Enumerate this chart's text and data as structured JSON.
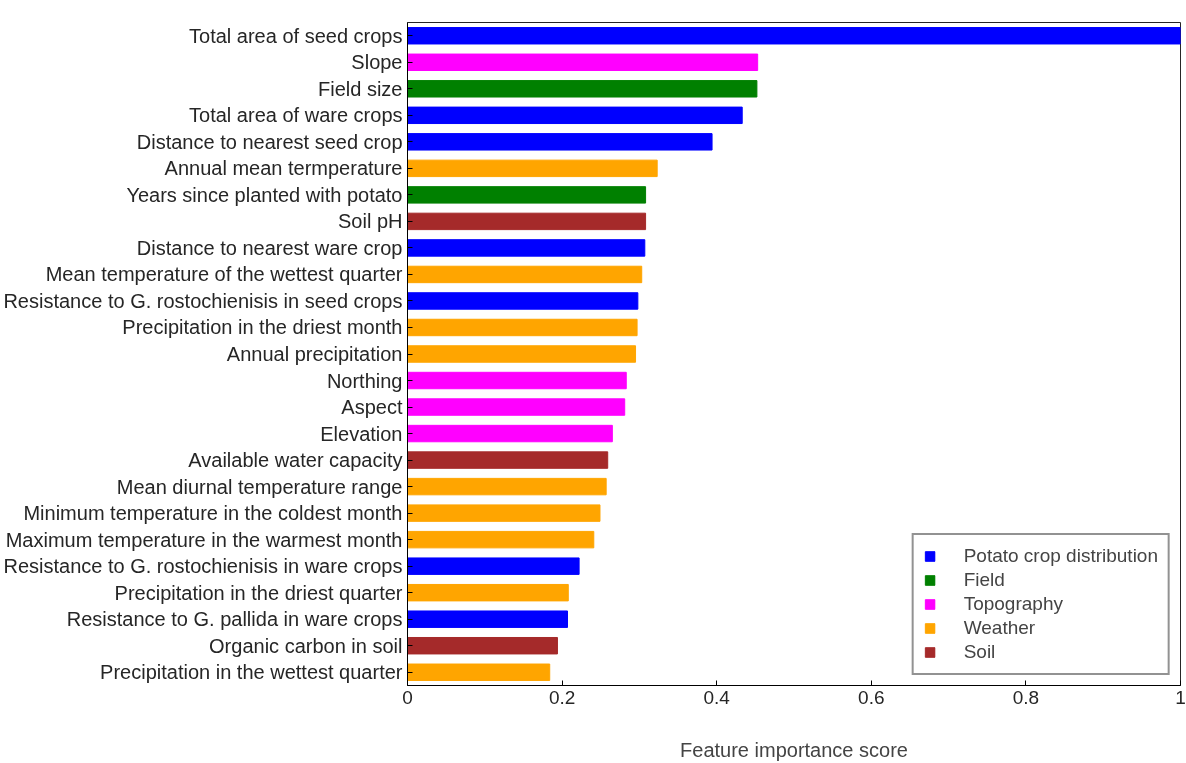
{
  "chart_data": {
    "type": "bar",
    "orientation": "horizontal",
    "xlabel": "Feature importance score",
    "categories": [
      "Total area of seed crops",
      "Slope",
      "Field size",
      "Total area of ware crops",
      "Distance to nearest seed crop",
      "Annual mean termperature",
      "Years since planted with potato",
      "Soil pH",
      "Distance to nearest ware crop",
      "Mean temperature of the wettest quarter",
      "Resistance to G. rostochienisis in seed crops",
      "Precipitation in the driest month",
      "Annual precipitation",
      "Northing",
      "Aspect",
      "Elevation",
      "Available water capacity",
      "Mean diurnal temperature range",
      "Minimum temperature in the coldest month",
      "Maximum temperature in the warmest month",
      "Resistance to G. rostochienisis in ware crops",
      "Precipitation in the driest quarter",
      "Resistance to G. pallida in ware crops",
      "Organic carbon in soil",
      "Precipitation in the wettest quarter"
    ],
    "series": [
      {
        "name": "Potato crop distribution",
        "color": "#0000ff",
        "values": [
          1.0,
          null,
          null,
          0.433,
          0.394,
          null,
          null,
          null,
          0.307,
          null,
          0.298,
          null,
          null,
          null,
          null,
          null,
          null,
          null,
          null,
          null,
          0.222,
          null,
          0.207,
          null,
          null
        ]
      },
      {
        "name": "Field",
        "color": "#008000",
        "values": [
          null,
          null,
          0.452,
          null,
          null,
          null,
          0.308,
          null,
          null,
          null,
          null,
          null,
          null,
          null,
          null,
          null,
          null,
          null,
          null,
          null,
          null,
          null,
          null,
          null,
          null
        ]
      },
      {
        "name": "Topography",
        "color": "#ff00ff",
        "values": [
          null,
          0.453,
          null,
          null,
          null,
          null,
          null,
          null,
          null,
          null,
          null,
          null,
          null,
          0.283,
          0.281,
          0.265,
          null,
          null,
          null,
          null,
          null,
          null,
          null,
          null,
          null
        ]
      },
      {
        "name": "Weather",
        "color": "#ffa500",
        "values": [
          null,
          null,
          null,
          null,
          null,
          0.323,
          null,
          null,
          null,
          0.303,
          null,
          0.297,
          0.295,
          null,
          null,
          null,
          null,
          0.257,
          0.249,
          0.241,
          null,
          0.208,
          null,
          null,
          0.184
        ]
      },
      {
        "name": "Soil",
        "color": "#a52a2a",
        "values": [
          null,
          null,
          null,
          null,
          null,
          null,
          null,
          0.308,
          null,
          null,
          null,
          null,
          null,
          null,
          null,
          null,
          0.259,
          null,
          null,
          null,
          null,
          null,
          null,
          0.194,
          null
        ]
      }
    ],
    "xlim": [
      0,
      1
    ],
    "xticks": [
      0,
      0.2,
      0.4,
      0.6,
      0.8,
      1
    ],
    "grid": false,
    "legend": "bottom right",
    "marker": "square"
  }
}
